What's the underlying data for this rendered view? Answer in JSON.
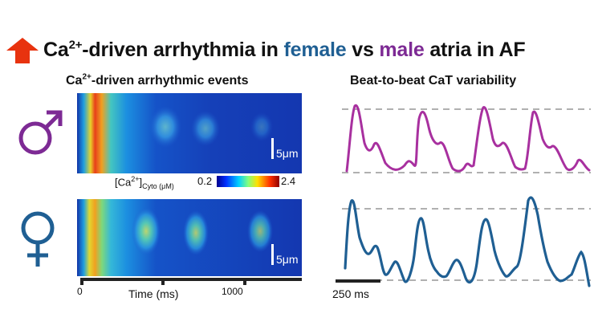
{
  "title": {
    "prefix": "Ca",
    "prefix_sup": "2+",
    "part1": "-driven arrhythmia in ",
    "female": "female",
    "vs": " vs ",
    "male": "male",
    "part2": " atria in AF"
  },
  "left_panel": {
    "heading_prefix": "Ca",
    "heading_sup": "2+",
    "heading_rest": "-driven arrhythmic events",
    "scale_bar_top": "5μm",
    "scale_bar_bottom": "5μm",
    "colorbar_label_prefix": "[Ca",
    "colorbar_label_sup": "2+",
    "colorbar_label_mid": "]",
    "colorbar_label_sub": "Cyto (μM)",
    "colorbar_min": "0.2",
    "colorbar_max": "2.4",
    "time_label": "Time (ms)",
    "time_ticks": [
      "0",
      "1000"
    ]
  },
  "right_panel": {
    "heading": "Beat-to-beat CaT variability",
    "time_scale": "250 ms"
  },
  "colors": {
    "female": "#1f5f93",
    "male": "#7d2a94",
    "male_trace": "#a8309f",
    "female_trace": "#1f5f93",
    "arrow": "#e8330f"
  },
  "icons": [
    "up-arrow-icon",
    "male-symbol-icon",
    "female-symbol-icon"
  ]
}
